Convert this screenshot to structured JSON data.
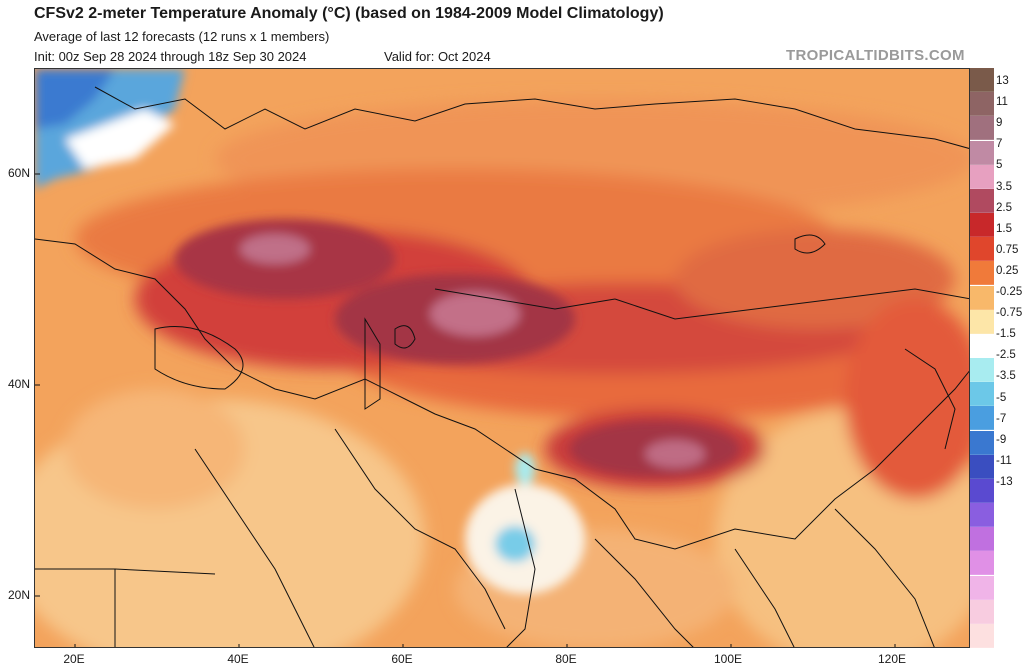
{
  "header": {
    "title": "CFSv2 2-meter Temperature Anomaly (°C) (based on 1984-2009 Model Climatology)",
    "subtitle": "Average of last 12 forecasts (12 runs x 1 members)",
    "init": "Init: 00z Sep 28 2024 through 18z Sep 30 2024",
    "valid": "Valid for: Oct 2024",
    "watermark": "TROPICALTIDBITS.COM"
  },
  "map": {
    "lat_labels": [
      "60N",
      "40N",
      "20N"
    ],
    "lon_labels": [
      "20E",
      "40E",
      "60E",
      "80E",
      "100E",
      "120E"
    ]
  },
  "colorbar": {
    "labels": [
      "13",
      "11",
      "9",
      "7",
      "5",
      "3.5",
      "2.5",
      "1.5",
      "0.75",
      "0.25",
      "-0.25",
      "-0.75",
      "-1.5",
      "-2.5",
      "-3.5",
      "-5",
      "-7",
      "-9",
      "-11",
      "-13"
    ],
    "colors": [
      "#7a5a4a",
      "#8e6464",
      "#a0707e",
      "#c08aa4",
      "#e7a0c0",
      "#b04a60",
      "#c8282a",
      "#e0462c",
      "#f07a3a",
      "#f8b86a",
      "#fde6a8",
      "#ffffff",
      "#a8ecf0",
      "#6cc8e8",
      "#4a9ee0",
      "#3a78d0",
      "#3a4ec0",
      "#5a4ad0",
      "#8a5ee0",
      "#c070e0",
      "#e090e6",
      "#f0b4e8",
      "#f8cce0",
      "#fde0e0"
    ]
  }
}
